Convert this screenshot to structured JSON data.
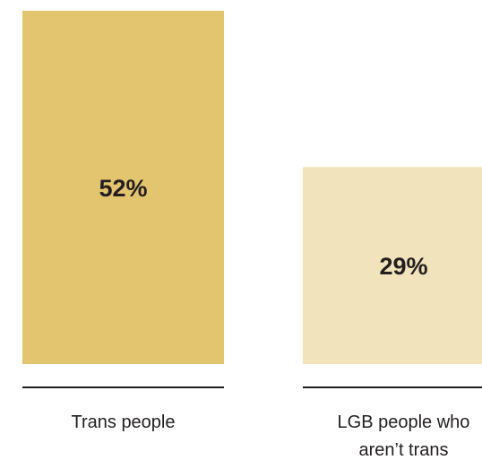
{
  "chart_data": {
    "type": "bar",
    "categories": [
      "Trans people",
      "LGB people who aren’t trans"
    ],
    "category_lines": [
      [
        "Trans people"
      ],
      [
        "LGB people who",
        "aren’t trans"
      ]
    ],
    "values": [
      52,
      29
    ],
    "value_labels": [
      "52%",
      "29%"
    ],
    "unit": "%",
    "ylim": [
      0,
      52
    ],
    "grid": false,
    "legend": "none",
    "colors": [
      "#e3c46f",
      "#f1e3bb"
    ],
    "baseline_color": "#231f20",
    "text_color": "#231f20"
  }
}
